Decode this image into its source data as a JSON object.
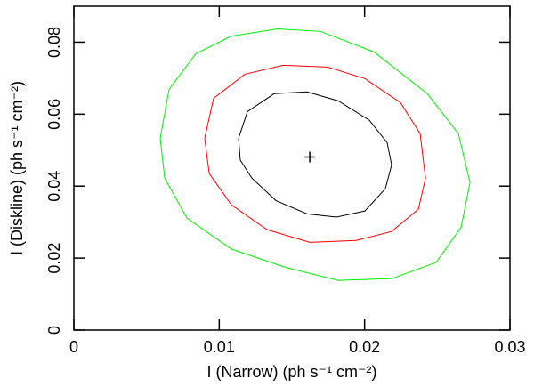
{
  "chart_data": {
    "type": "contour",
    "x_label": "I (Narrow) (ph s⁻¹ cm⁻²)",
    "y_label": "I (Diskline) (ph s⁻¹ cm⁻²)",
    "xlim": [
      0,
      0.03
    ],
    "xticks": [
      0,
      0.01,
      0.02,
      0.03
    ],
    "ylim": [
      0,
      0.09
    ],
    "yticks": [
      0,
      0.02,
      0.04,
      0.06,
      0.08
    ],
    "best_fit": {
      "x": 0.01623,
      "y": 0.0481
    },
    "series": [
      {
        "color": "#000000",
        "x": [
          0.01133,
          0.01194,
          0.01378,
          0.01604,
          0.01819,
          0.02033,
          0.02155,
          0.02186,
          0.02143,
          0.02002,
          0.01806,
          0.01604,
          0.0139,
          0.01225,
          0.01145,
          0.01133
        ],
        "y": [
          0.0533,
          0.0607,
          0.0657,
          0.0662,
          0.0637,
          0.0583,
          0.0521,
          0.0459,
          0.0393,
          0.0331,
          0.0314,
          0.0323,
          0.036,
          0.0422,
          0.0472,
          0.0533
        ]
      },
      {
        "color": "#ff0000",
        "x": [
          0.009,
          0.00961,
          0.01176,
          0.01439,
          0.01745,
          0.02002,
          0.02247,
          0.02382,
          0.02419,
          0.0237,
          0.02186,
          0.01941,
          0.01623,
          0.01329,
          0.01084,
          0.00931,
          0.009
        ],
        "y": [
          0.0533,
          0.0644,
          0.0711,
          0.0736,
          0.0731,
          0.0699,
          0.0632,
          0.0546,
          0.0422,
          0.0336,
          0.0274,
          0.0249,
          0.0244,
          0.0279,
          0.0348,
          0.0435,
          0.0533
        ]
      },
      {
        "color": "#00ee00",
        "x": [
          0.00594,
          0.00655,
          0.00839,
          0.01084,
          0.01402,
          0.01696,
          0.02064,
          0.02431,
          0.02645,
          0.02725,
          0.02664,
          0.02492,
          0.02186,
          0.01819,
          0.01451,
          0.01084,
          0.00778,
          0.00625,
          0.00594
        ],
        "y": [
          0.0533,
          0.0669,
          0.0768,
          0.0817,
          0.0837,
          0.083,
          0.0773,
          0.0657,
          0.0546,
          0.041,
          0.0286,
          0.0188,
          0.0143,
          0.0138,
          0.0175,
          0.0225,
          0.0311,
          0.0422,
          0.0533
        ]
      }
    ]
  }
}
